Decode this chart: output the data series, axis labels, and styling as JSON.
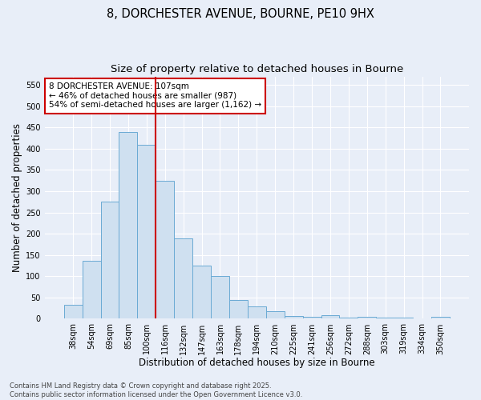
{
  "title_line1": "8, DORCHESTER AVENUE, BOURNE, PE10 9HX",
  "title_line2": "Size of property relative to detached houses in Bourne",
  "xlabel": "Distribution of detached houses by size in Bourne",
  "ylabel": "Number of detached properties",
  "categories": [
    "38sqm",
    "54sqm",
    "69sqm",
    "85sqm",
    "100sqm",
    "116sqm",
    "132sqm",
    "147sqm",
    "163sqm",
    "178sqm",
    "194sqm",
    "210sqm",
    "225sqm",
    "241sqm",
    "256sqm",
    "272sqm",
    "288sqm",
    "303sqm",
    "319sqm",
    "334sqm",
    "350sqm"
  ],
  "values": [
    33,
    136,
    275,
    440,
    410,
    325,
    190,
    125,
    101,
    45,
    30,
    17,
    6,
    5,
    9,
    3,
    4,
    3,
    2,
    1,
    5
  ],
  "bar_color": "#cfe0f0",
  "bar_edge_color": "#6aaad4",
  "background_color": "#e8eef8",
  "grid_color": "#ffffff",
  "annotation_text": "8 DORCHESTER AVENUE: 107sqm\n← 46% of detached houses are smaller (987)\n54% of semi-detached houses are larger (1,162) →",
  "annotation_box_color": "#ffffff",
  "annotation_box_edge_color": "#cc0000",
  "vline_x_index": 4.5,
  "vline_color": "#cc0000",
  "ylim": [
    0,
    570
  ],
  "yticks": [
    0,
    50,
    100,
    150,
    200,
    250,
    300,
    350,
    400,
    450,
    500,
    550
  ],
  "footer_line1": "Contains HM Land Registry data © Crown copyright and database right 2025.",
  "footer_line2": "Contains public sector information licensed under the Open Government Licence v3.0.",
  "title_fontsize": 10.5,
  "subtitle_fontsize": 9.5,
  "axis_label_fontsize": 8.5,
  "tick_fontsize": 7,
  "annotation_fontsize": 7.5,
  "footer_fontsize": 6
}
